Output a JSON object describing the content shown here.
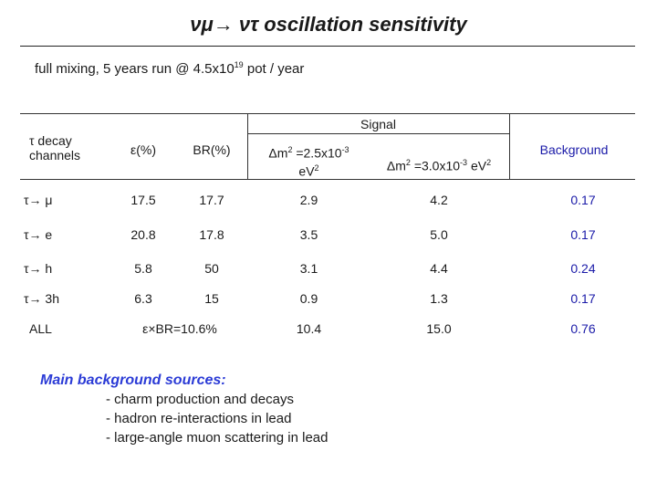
{
  "title": "νμ→ ντ oscillation sensitivity",
  "subtitle": {
    "prefix": "full mixing, 5 years run @ 4.5x10",
    "exp": "19",
    "suffix": " pot / year"
  },
  "table": {
    "col_decay_channels": "τ decay channels",
    "col_eff": "ε(%)",
    "col_br": "BR(%)",
    "signal_label": "Signal",
    "signal_dm1": {
      "prefix": "Δm",
      "sq": "2",
      "mid": " =2.5x10",
      "exp": "-3",
      "unit": "eV",
      "unit_sq": "2"
    },
    "signal_dm2": {
      "prefix": "Δm",
      "sq": "2",
      "mid": " =3.0x10",
      "exp": "-3",
      "unit": " eV",
      "unit_sq": "2"
    },
    "col_background": "Background",
    "rows": [
      {
        "channel": "τ→ μ",
        "eff": "17.5",
        "br": "17.7",
        "sig1": "2.9",
        "sig2": "4.2",
        "bkg": "0.17"
      },
      {
        "channel": "τ→ e",
        "eff": "20.8",
        "br": "17.8",
        "sig1": "3.5",
        "sig2": "5.0",
        "bkg": "0.17"
      },
      {
        "channel": "τ→ h",
        "eff": "5.8",
        "br": "50",
        "sig1": "3.1",
        "sig2": "4.4",
        "bkg": "0.24"
      },
      {
        "channel": "τ→ 3h",
        "eff": "6.3",
        "br": "15",
        "sig1": "0.9",
        "sig2": "1.3",
        "bkg": "0.17"
      }
    ],
    "total": {
      "channel": "ALL",
      "eff_br": "ε×BR=10.6%",
      "sig1": "10.4",
      "sig2": "15.0",
      "bkg": "0.76"
    }
  },
  "notes": {
    "heading": "Main background sources:",
    "items": [
      "- charm production and decays",
      "- hadron re-interactions in lead",
      "- large-angle muon scattering in lead"
    ]
  }
}
